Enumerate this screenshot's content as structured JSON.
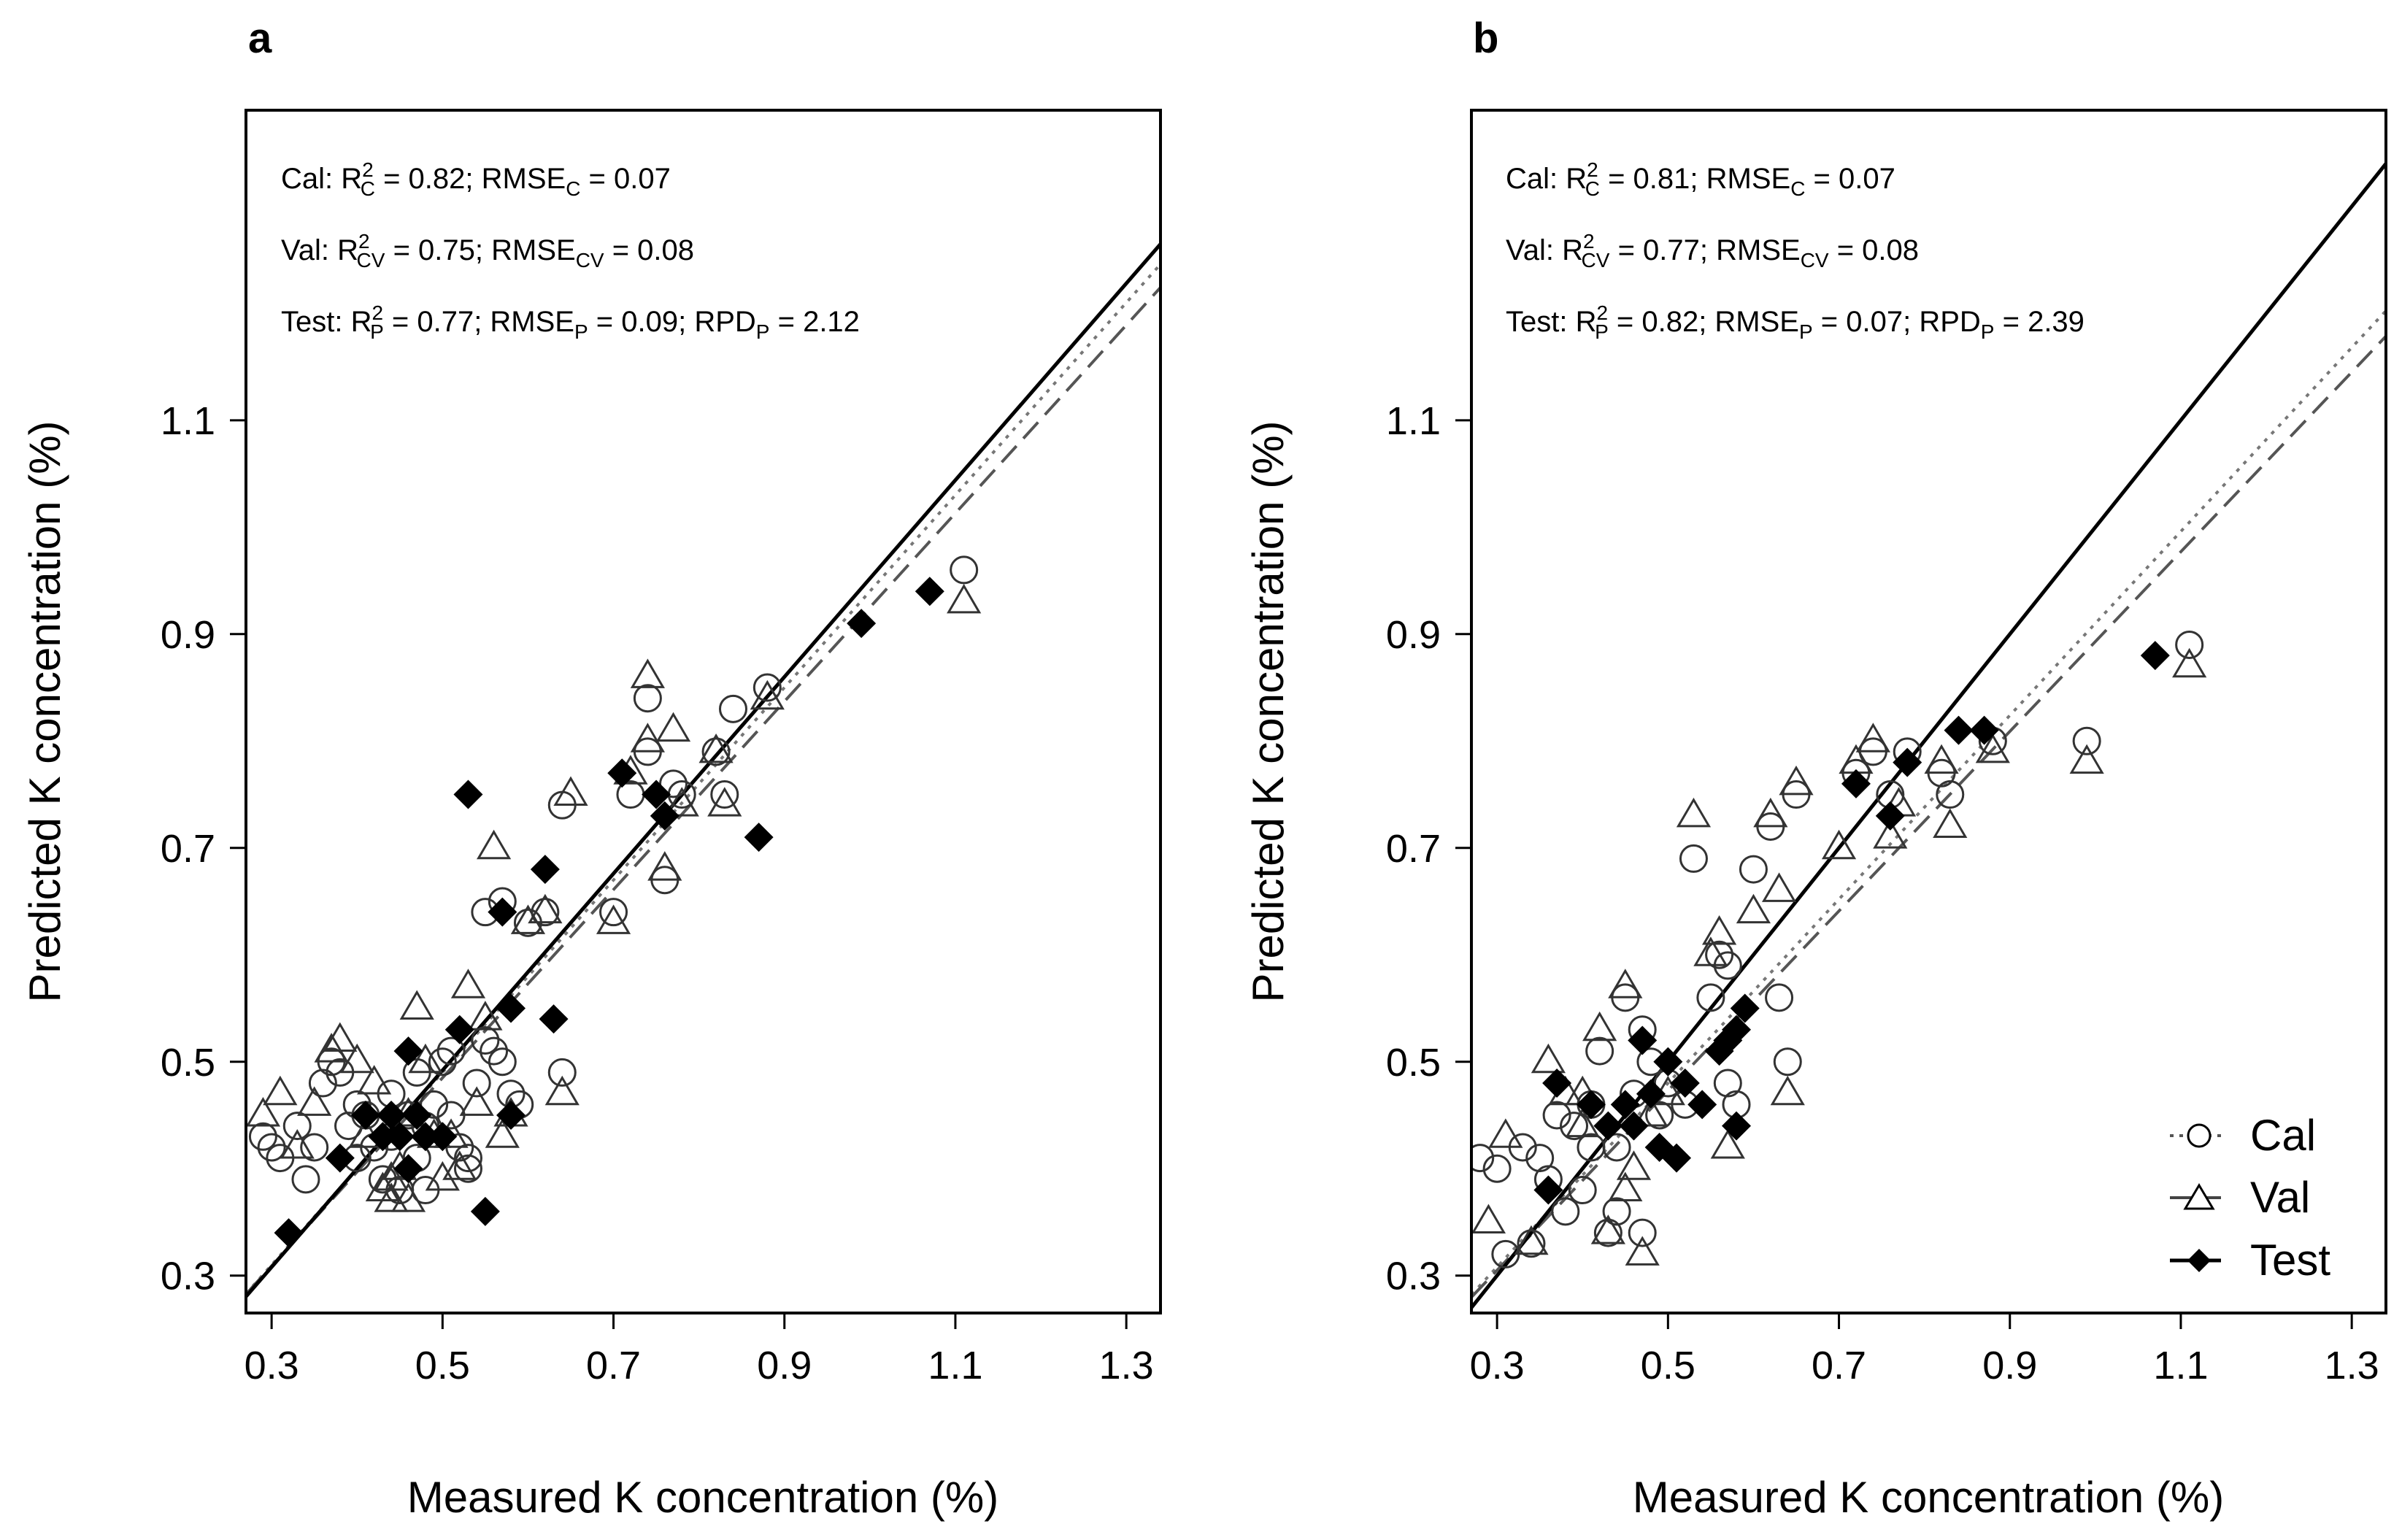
{
  "panels": [
    {
      "label": "a",
      "xlabel": "Measured K concentration (%)",
      "ylabel": "Predicted K concentration (%)",
      "xlim": [
        0.27,
        1.34
      ],
      "ylim": [
        0.265,
        1.39
      ],
      "xticks": [
        "0.3",
        "0.5",
        "0.7",
        "0.9",
        "1.1",
        "1.3"
      ],
      "yticks": [
        "0.3",
        "0.5",
        "0.7",
        "0.9",
        "1.1"
      ],
      "stats": {
        "cal": {
          "prefix": "Cal: R",
          "sup": "2",
          "sub": "C",
          "eq1": " = 0.82; RMSE",
          "sub2": "C",
          "eq2": " = 0.07"
        },
        "val": {
          "prefix": "Val: R",
          "sup": "2",
          "sub": "CV",
          "eq1": " = 0.75; RMSE",
          "sub2": "CV",
          "eq2": " = 0.08"
        },
        "test": {
          "prefix": "Test: R",
          "sup": "2",
          "sub": "P",
          "eq1": " = 0.77; RMSE",
          "sub2": "P",
          "eq2": " = 0.09; RPD",
          "sub3": "P",
          "eq3": " = 2.12"
        }
      }
    },
    {
      "label": "b",
      "xlabel": "Measured K concentration (%)",
      "ylabel": "Predicted K concentration (%)",
      "xlim": [
        0.27,
        1.34
      ],
      "ylim": [
        0.265,
        1.39
      ],
      "xticks": [
        "0.3",
        "0.5",
        "0.7",
        "0.9",
        "1.1",
        "1.3"
      ],
      "yticks": [
        "0.3",
        "0.5",
        "0.7",
        "0.9",
        "1.1"
      ],
      "stats": {
        "cal": {
          "prefix": "Cal: R",
          "sup": "2",
          "sub": "C",
          "eq1": " = 0.81; RMSE",
          "sub2": "C",
          "eq2": " = 0.07"
        },
        "val": {
          "prefix": "Val: R",
          "sup": "2",
          "sub": "CV",
          "eq1": " = 0.77; RMSE",
          "sub2": "CV",
          "eq2": " = 0.08"
        },
        "test": {
          "prefix": "Test: R",
          "sup": "2",
          "sub": "P",
          "eq1": " = 0.82; RMSE",
          "sub2": "P",
          "eq2": " = 0.07; RPD",
          "sub3": "P",
          "eq3": " = 2.39"
        }
      },
      "legend": [
        "Cal",
        "Val",
        "Test"
      ]
    }
  ],
  "chart_data": [
    {
      "type": "scatter",
      "title": "a",
      "xlabel": "Measured K concentration (%)",
      "ylabel": "Predicted K concentration (%)",
      "xlim": [
        0.27,
        1.34
      ],
      "ylim": [
        0.265,
        1.39
      ],
      "fit_lines": [
        {
          "name": "Cal",
          "style": "dotted",
          "slope": 0.9,
          "intercept": 0.04
        },
        {
          "name": "Val",
          "style": "dashed",
          "slope": 0.88,
          "intercept": 0.045
        },
        {
          "name": "Test",
          "style": "solid",
          "slope": 0.92,
          "intercept": 0.032
        }
      ],
      "series": [
        {
          "name": "Cal",
          "marker": "circle",
          "points": [
            [
              0.29,
              0.43
            ],
            [
              0.3,
              0.42
            ],
            [
              0.31,
              0.41
            ],
            [
              0.33,
              0.44
            ],
            [
              0.34,
              0.39
            ],
            [
              0.35,
              0.42
            ],
            [
              0.36,
              0.48
            ],
            [
              0.37,
              0.5
            ],
            [
              0.38,
              0.49
            ],
            [
              0.39,
              0.44
            ],
            [
              0.4,
              0.41
            ],
            [
              0.41,
              0.45
            ],
            [
              0.42,
              0.42
            ],
            [
              0.43,
              0.39
            ],
            [
              0.44,
              0.43
            ],
            [
              0.45,
              0.38
            ],
            [
              0.46,
              0.45
            ],
            [
              0.47,
              0.41
            ],
            [
              0.48,
              0.44
            ],
            [
              0.49,
              0.46
            ],
            [
              0.5,
              0.5
            ],
            [
              0.51,
              0.45
            ],
            [
              0.52,
              0.42
            ],
            [
              0.53,
              0.41
            ],
            [
              0.54,
              0.48
            ],
            [
              0.55,
              0.52
            ],
            [
              0.56,
              0.51
            ],
            [
              0.57,
              0.5
            ],
            [
              0.58,
              0.47
            ],
            [
              0.59,
              0.46
            ],
            [
              0.55,
              0.64
            ],
            [
              0.57,
              0.65
            ],
            [
              0.6,
              0.63
            ],
            [
              0.62,
              0.64
            ],
            [
              0.64,
              0.74
            ],
            [
              0.64,
              0.49
            ],
            [
              0.7,
              0.64
            ],
            [
              0.72,
              0.75
            ],
            [
              0.74,
              0.84
            ],
            [
              0.74,
              0.79
            ],
            [
              0.76,
              0.67
            ],
            [
              0.77,
              0.76
            ],
            [
              0.78,
              0.75
            ],
            [
              0.82,
              0.79
            ],
            [
              0.83,
              0.75
            ],
            [
              0.84,
              0.83
            ],
            [
              0.88,
              0.85
            ],
            [
              1.11,
              0.96
            ],
            [
              0.47,
              0.49
            ],
            [
              0.44,
              0.47
            ],
            [
              0.4,
              0.46
            ],
            [
              0.51,
              0.51
            ],
            [
              0.53,
              0.4
            ],
            [
              0.48,
              0.38
            ]
          ]
        },
        {
          "name": "Val",
          "marker": "triangle",
          "points": [
            [
              0.29,
              0.45
            ],
            [
              0.31,
              0.47
            ],
            [
              0.33,
              0.42
            ],
            [
              0.35,
              0.46
            ],
            [
              0.37,
              0.51
            ],
            [
              0.38,
              0.52
            ],
            [
              0.4,
              0.5
            ],
            [
              0.41,
              0.43
            ],
            [
              0.42,
              0.48
            ],
            [
              0.43,
              0.38
            ],
            [
              0.44,
              0.39
            ],
            [
              0.45,
              0.4
            ],
            [
              0.46,
              0.45
            ],
            [
              0.47,
              0.55
            ],
            [
              0.48,
              0.5
            ],
            [
              0.49,
              0.43
            ],
            [
              0.5,
              0.39
            ],
            [
              0.51,
              0.43
            ],
            [
              0.52,
              0.4
            ],
            [
              0.53,
              0.57
            ],
            [
              0.54,
              0.46
            ],
            [
              0.55,
              0.54
            ],
            [
              0.56,
              0.7
            ],
            [
              0.57,
              0.43
            ],
            [
              0.58,
              0.45
            ],
            [
              0.6,
              0.63
            ],
            [
              0.62,
              0.64
            ],
            [
              0.64,
              0.47
            ],
            [
              0.65,
              0.75
            ],
            [
              0.7,
              0.63
            ],
            [
              0.72,
              0.77
            ],
            [
              0.74,
              0.86
            ],
            [
              0.74,
              0.8
            ],
            [
              0.76,
              0.68
            ],
            [
              0.77,
              0.81
            ],
            [
              0.78,
              0.74
            ],
            [
              0.82,
              0.79
            ],
            [
              0.83,
              0.74
            ],
            [
              0.88,
              0.84
            ],
            [
              1.11,
              0.93
            ],
            [
              0.46,
              0.37
            ],
            [
              0.44,
              0.37
            ]
          ]
        },
        {
          "name": "Test",
          "marker": "diamond",
          "points": [
            [
              0.32,
              0.34
            ],
            [
              0.38,
              0.41
            ],
            [
              0.41,
              0.45
            ],
            [
              0.43,
              0.43
            ],
            [
              0.44,
              0.45
            ],
            [
              0.45,
              0.43
            ],
            [
              0.46,
              0.51
            ],
            [
              0.46,
              0.4
            ],
            [
              0.47,
              0.45
            ],
            [
              0.48,
              0.43
            ],
            [
              0.5,
              0.43
            ],
            [
              0.52,
              0.53
            ],
            [
              0.53,
              0.75
            ],
            [
              0.55,
              0.36
            ],
            [
              0.57,
              0.64
            ],
            [
              0.58,
              0.55
            ],
            [
              0.58,
              0.45
            ],
            [
              0.62,
              0.68
            ],
            [
              0.63,
              0.54
            ],
            [
              0.71,
              0.77
            ],
            [
              0.75,
              0.75
            ],
            [
              0.76,
              0.73
            ],
            [
              0.87,
              0.71
            ],
            [
              0.99,
              0.91
            ],
            [
              1.07,
              0.94
            ]
          ]
        }
      ]
    },
    {
      "type": "scatter",
      "title": "b",
      "xlabel": "Measured K concentration (%)",
      "ylabel": "Predicted K concentration (%)",
      "xlim": [
        0.27,
        1.34
      ],
      "ylim": [
        0.265,
        1.39
      ],
      "legend": "bottom-right",
      "fit_lines": [
        {
          "name": "Cal",
          "style": "dotted",
          "slope": 0.86,
          "intercept": 0.05
        },
        {
          "name": "Val",
          "style": "dashed",
          "slope": 0.84,
          "intercept": 0.053
        },
        {
          "name": "Test",
          "style": "solid",
          "slope": 1.0,
          "intercept": 0.0
        }
      ],
      "series": [
        {
          "name": "Cal",
          "marker": "circle",
          "points": [
            [
              0.28,
              0.41
            ],
            [
              0.3,
              0.4
            ],
            [
              0.31,
              0.32
            ],
            [
              0.33,
              0.42
            ],
            [
              0.34,
              0.33
            ],
            [
              0.35,
              0.41
            ],
            [
              0.36,
              0.39
            ],
            [
              0.37,
              0.45
            ],
            [
              0.38,
              0.36
            ],
            [
              0.39,
              0.44
            ],
            [
              0.4,
              0.38
            ],
            [
              0.41,
              0.42
            ],
            [
              0.42,
              0.51
            ],
            [
              0.43,
              0.34
            ],
            [
              0.44,
              0.36
            ],
            [
              0.45,
              0.56
            ],
            [
              0.46,
              0.47
            ],
            [
              0.47,
              0.53
            ],
            [
              0.48,
              0.5
            ],
            [
              0.49,
              0.45
            ],
            [
              0.5,
              0.48
            ],
            [
              0.52,
              0.46
            ],
            [
              0.53,
              0.69
            ],
            [
              0.55,
              0.56
            ],
            [
              0.56,
              0.6
            ],
            [
              0.57,
              0.59
            ],
            [
              0.58,
              0.46
            ],
            [
              0.6,
              0.68
            ],
            [
              0.62,
              0.72
            ],
            [
              0.63,
              0.56
            ],
            [
              0.64,
              0.5
            ],
            [
              0.65,
              0.75
            ],
            [
              0.72,
              0.77
            ],
            [
              0.74,
              0.79
            ],
            [
              0.76,
              0.75
            ],
            [
              0.78,
              0.79
            ],
            [
              0.82,
              0.77
            ],
            [
              0.83,
              0.75
            ],
            [
              0.88,
              0.8
            ],
            [
              0.99,
              0.8
            ],
            [
              1.11,
              0.89
            ],
            [
              0.47,
              0.34
            ],
            [
              0.44,
              0.42
            ],
            [
              0.41,
              0.46
            ],
            [
              0.57,
              0.48
            ]
          ]
        },
        {
          "name": "Val",
          "marker": "triangle",
          "points": [
            [
              0.29,
              0.35
            ],
            [
              0.31,
              0.43
            ],
            [
              0.34,
              0.33
            ],
            [
              0.36,
              0.5
            ],
            [
              0.38,
              0.47
            ],
            [
              0.4,
              0.44
            ],
            [
              0.42,
              0.53
            ],
            [
              0.43,
              0.34
            ],
            [
              0.45,
              0.57
            ],
            [
              0.46,
              0.4
            ],
            [
              0.47,
              0.32
            ],
            [
              0.48,
              0.45
            ],
            [
              0.5,
              0.47
            ],
            [
              0.53,
              0.73
            ],
            [
              0.55,
              0.6
            ],
            [
              0.56,
              0.62
            ],
            [
              0.57,
              0.42
            ],
            [
              0.6,
              0.64
            ],
            [
              0.62,
              0.73
            ],
            [
              0.63,
              0.66
            ],
            [
              0.64,
              0.47
            ],
            [
              0.65,
              0.76
            ],
            [
              0.7,
              0.7
            ],
            [
              0.72,
              0.78
            ],
            [
              0.74,
              0.8
            ],
            [
              0.76,
              0.71
            ],
            [
              0.77,
              0.74
            ],
            [
              0.82,
              0.78
            ],
            [
              0.83,
              0.72
            ],
            [
              0.88,
              0.79
            ],
            [
              0.99,
              0.78
            ],
            [
              1.11,
              0.87
            ],
            [
              0.45,
              0.38
            ],
            [
              0.4,
              0.47
            ]
          ]
        },
        {
          "name": "Test",
          "marker": "diamond",
          "points": [
            [
              0.36,
              0.38
            ],
            [
              0.37,
              0.48
            ],
            [
              0.41,
              0.46
            ],
            [
              0.43,
              0.44
            ],
            [
              0.45,
              0.46
            ],
            [
              0.46,
              0.44
            ],
            [
              0.47,
              0.52
            ],
            [
              0.48,
              0.47
            ],
            [
              0.49,
              0.42
            ],
            [
              0.5,
              0.5
            ],
            [
              0.51,
              0.41
            ],
            [
              0.52,
              0.48
            ],
            [
              0.54,
              0.46
            ],
            [
              0.56,
              0.51
            ],
            [
              0.57,
              0.52
            ],
            [
              0.58,
              0.53
            ],
            [
              0.58,
              0.44
            ],
            [
              0.59,
              0.55
            ],
            [
              0.72,
              0.76
            ],
            [
              0.76,
              0.73
            ],
            [
              0.78,
              0.78
            ],
            [
              0.84,
              0.81
            ],
            [
              0.87,
              0.81
            ],
            [
              1.07,
              0.88
            ]
          ]
        }
      ]
    }
  ]
}
